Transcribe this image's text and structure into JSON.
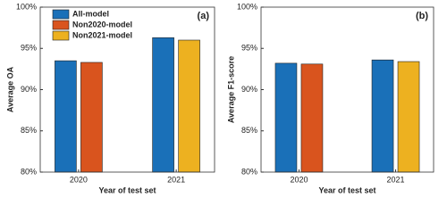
{
  "chart_data": [
    {
      "type": "bar",
      "title": "(a)",
      "y_label": "Average OA",
      "x_label": "Year of test set",
      "categories": [
        "2020",
        "2021"
      ],
      "series": [
        {
          "name": "All-model",
          "color": "#1a70b8",
          "values": [
            93.5,
            96.3
          ]
        },
        {
          "name": "Non2020-model",
          "color": "#d9541e",
          "values": [
            93.3,
            null
          ]
        },
        {
          "name": "Non2021-model",
          "color": "#edb120",
          "values": [
            null,
            96.0
          ]
        }
      ],
      "ylim": [
        80,
        100
      ],
      "yticks": [
        {
          "value": 80,
          "label": "80%"
        },
        {
          "value": 85,
          "label": "85%"
        },
        {
          "value": 90,
          "label": "90%"
        },
        {
          "value": 95,
          "label": "95%"
        },
        {
          "value": 100,
          "label": "100%"
        }
      ],
      "legend": "top-left"
    },
    {
      "type": "bar",
      "title": "(b)",
      "y_label": "Average F1-score",
      "x_label": "Year of test set",
      "categories": [
        "2020",
        "2021"
      ],
      "series": [
        {
          "color": "#1a70b8",
          "values": [
            93.2,
            93.6
          ]
        },
        {
          "color": "#d9541e",
          "values": [
            93.1,
            null
          ]
        },
        {
          "color": "#edb120",
          "values": [
            null,
            93.4
          ]
        }
      ],
      "ylim": [
        80,
        100
      ],
      "yticks": [
        {
          "value": 80,
          "label": "80%"
        },
        {
          "value": 85,
          "label": "85%"
        },
        {
          "value": 90,
          "label": "90%"
        },
        {
          "value": 95,
          "label": "95%"
        },
        {
          "value": 100,
          "label": "100%"
        }
      ]
    }
  ]
}
